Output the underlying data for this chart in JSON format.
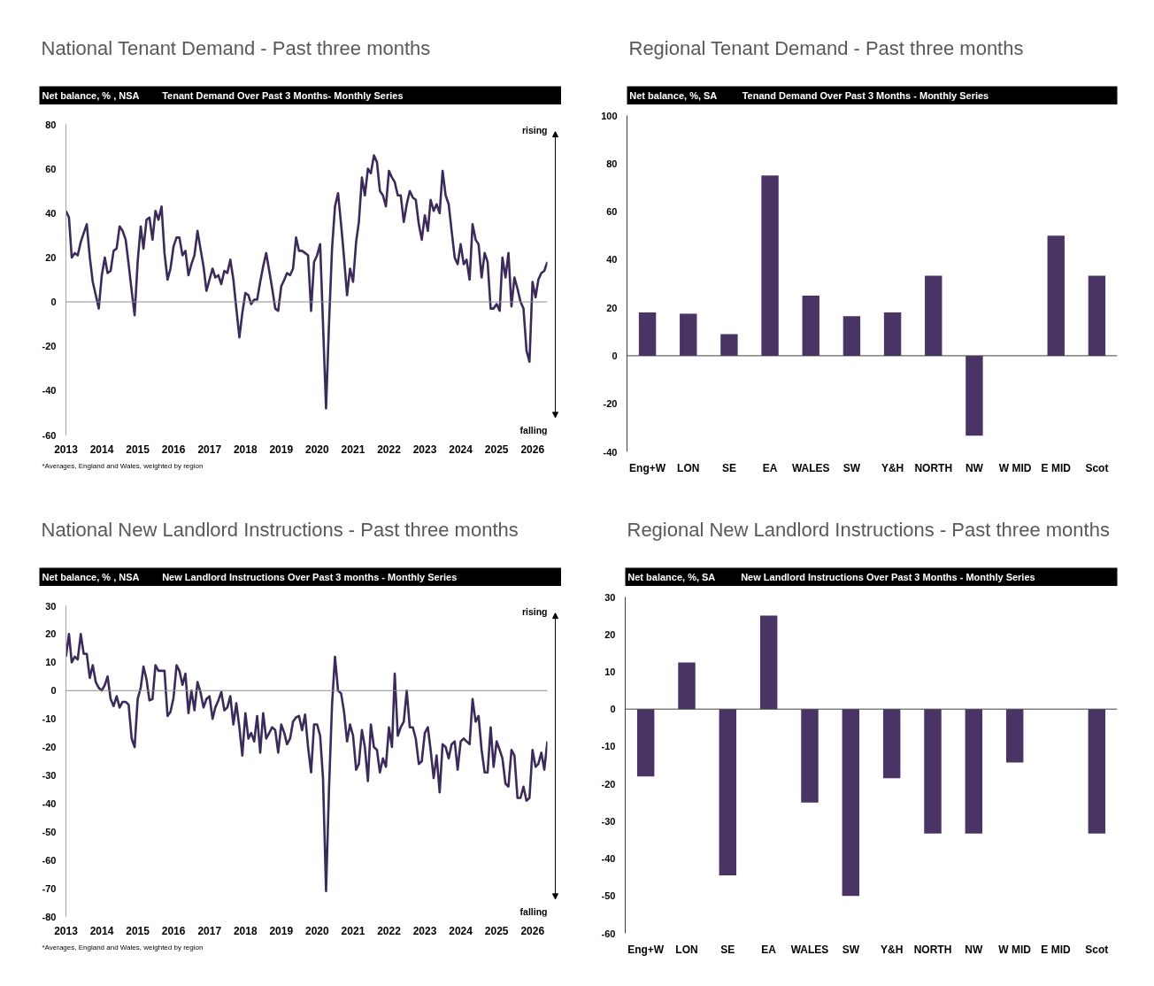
{
  "chart_data": [
    {
      "type": "line",
      "title": "National Tenant Demand - Past three months",
      "subtitle": "Tenant Demand Over Past 3 Months- Monthly Series",
      "ylabel": "Net balance, % , NSA",
      "annotations": [
        "rising",
        "falling",
        "*Averages, England and Wales, weighted by region"
      ],
      "x": [
        "2013-01",
        "2013-02",
        "2013-03",
        "2013-04",
        "2013-05",
        "2013-06",
        "2013-07",
        "2013-08",
        "2013-09",
        "2013-10",
        "2013-11",
        "2013-12",
        "2014-01",
        "2014-02",
        "2014-03",
        "2014-04",
        "2014-05",
        "2014-06",
        "2014-07",
        "2014-08",
        "2014-09",
        "2014-10",
        "2014-11",
        "2014-12",
        "2015-01",
        "2015-02",
        "2015-03",
        "2015-04",
        "2015-05",
        "2015-06",
        "2015-07",
        "2015-08",
        "2015-09",
        "2015-10",
        "2015-11",
        "2015-12",
        "2016-01",
        "2016-02",
        "2016-03",
        "2016-04",
        "2016-05",
        "2016-06",
        "2016-07",
        "2016-08",
        "2016-09",
        "2016-10",
        "2016-11",
        "2016-12",
        "2017-01",
        "2017-02",
        "2017-03",
        "2017-04",
        "2017-05",
        "2017-06",
        "2017-07",
        "2017-08",
        "2017-09",
        "2017-10",
        "2017-11",
        "2017-12",
        "2018-01",
        "2018-02",
        "2018-03",
        "2018-04",
        "2018-05",
        "2018-06",
        "2018-07",
        "2018-08",
        "2018-09",
        "2018-10",
        "2018-11",
        "2018-12",
        "2019-01",
        "2019-02",
        "2019-03",
        "2019-04",
        "2019-05",
        "2019-06",
        "2019-07",
        "2019-08",
        "2019-09",
        "2019-10",
        "2019-11",
        "2019-12",
        "2020-01",
        "2020-02",
        "2020-03",
        "2020-04",
        "2020-05",
        "2020-06",
        "2020-07",
        "2020-08",
        "2020-09",
        "2020-10",
        "2020-11",
        "2020-12",
        "2021-01",
        "2021-02",
        "2021-03",
        "2021-04",
        "2021-05",
        "2021-06",
        "2021-07",
        "2021-08",
        "2021-09",
        "2021-10",
        "2021-11",
        "2021-12",
        "2022-01",
        "2022-02",
        "2022-03",
        "2022-04",
        "2022-05",
        "2022-06",
        "2022-07",
        "2022-08",
        "2022-09",
        "2022-10",
        "2022-11",
        "2022-12",
        "2023-01",
        "2023-02",
        "2023-03",
        "2023-04",
        "2023-05",
        "2023-06",
        "2023-07",
        "2023-08",
        "2023-09",
        "2023-10",
        "2023-11",
        "2023-12",
        "2024-01",
        "2024-02",
        "2024-03",
        "2024-04",
        "2024-05",
        "2024-06",
        "2024-07",
        "2024-08",
        "2024-09",
        "2024-10",
        "2024-11",
        "2024-12",
        "2025-01",
        "2025-02",
        "2025-03",
        "2025-04",
        "2025-05",
        "2025-06",
        "2025-07",
        "2025-08",
        "2025-09",
        "2025-10",
        "2025-11",
        "2025-12",
        "2026-01",
        "2026-02",
        "2026-03",
        "2026-04",
        "2026-05",
        "2026-06"
      ],
      "series": [
        {
          "color": "#3b2a5a",
          "values": [
            41,
            38,
            20,
            22,
            21,
            27,
            31,
            35,
            20,
            9,
            3,
            -3,
            12,
            20,
            13,
            14,
            23,
            24,
            34,
            32,
            28,
            17,
            5,
            -6,
            18,
            34,
            24,
            37,
            38,
            28,
            41,
            37,
            43,
            22,
            10,
            15,
            25,
            29,
            29,
            21,
            23,
            12,
            17,
            21,
            32,
            24,
            16,
            5,
            10,
            15,
            11,
            12,
            8,
            14,
            13,
            19,
            10,
            -3,
            -16,
            -5,
            4,
            3,
            -1,
            1,
            1,
            9,
            16,
            22,
            14,
            6,
            -3,
            -4,
            7,
            10,
            13,
            12,
            15,
            29,
            23,
            23,
            22,
            21,
            -4,
            18,
            21,
            26,
            -10,
            -48,
            -10,
            24,
            43,
            49,
            35,
            20,
            3,
            15,
            9,
            27,
            36,
            56,
            48,
            60,
            58,
            66,
            63,
            50,
            48,
            43,
            59,
            56,
            54,
            48,
            48,
            36,
            44,
            50,
            47,
            46,
            35,
            28,
            39,
            32,
            46,
            41,
            44,
            40,
            59,
            48,
            44,
            32,
            20,
            17,
            26,
            17,
            19,
            10,
            35,
            28,
            26,
            11,
            22,
            18,
            -3,
            -3,
            -1,
            -4,
            20,
            11,
            22,
            -2,
            11,
            6,
            0,
            -3,
            -22,
            -27,
            9,
            2,
            10,
            13,
            14,
            18
          ]
        }
      ],
      "xlim": [
        "2013-01",
        "2026-06"
      ],
      "xticks": [
        "2013",
        "2014",
        "2015",
        "2016",
        "2017",
        "2018",
        "2019",
        "2020",
        "2021",
        "2022",
        "2023",
        "2024",
        "2025",
        "2026"
      ],
      "ylim": [
        -60,
        80
      ],
      "yticks": [
        -60,
        -40,
        -20,
        0,
        20,
        40,
        60,
        80
      ],
      "ref_lines": [
        {
          "axis": "y",
          "value": 0,
          "color": "#8c8c8c"
        }
      ]
    },
    {
      "type": "bar",
      "title": "Regional Tenant Demand - Past three months",
      "subtitle": "Tenand Demand Over Past 3 Months - Monthly Series",
      "ylabel": "Net balance, %, SA",
      "categories": [
        "Eng+W",
        "LON",
        "SE",
        "EA",
        "WALES",
        "SW",
        "Y&H",
        "NORTH",
        "NW",
        "W MID",
        "E MID",
        "Scot"
      ],
      "series": [
        {
          "color": "#4a3466",
          "values": [
            18,
            17.5,
            9,
            75,
            25,
            16.5,
            18,
            33.3,
            -33.3,
            null,
            50,
            33.3
          ]
        }
      ],
      "ylim": [
        -40,
        100
      ],
      "yticks": [
        -40,
        -20,
        0,
        20,
        40,
        60,
        80,
        100
      ],
      "ref_lines": [
        {
          "axis": "y",
          "value": 0,
          "color": "#404040"
        }
      ]
    },
    {
      "type": "line",
      "title": "National New Landlord Instructions - Past three months",
      "subtitle": "New Landlord Instructions Over Past 3 months - Monthly Series",
      "ylabel": "Net balance, % , NSA",
      "annotations": [
        "rising",
        "falling",
        "*Averages, England and Wales, weighted by region"
      ],
      "x": [
        "2013-01",
        "2013-02",
        "2013-03",
        "2013-04",
        "2013-05",
        "2013-06",
        "2013-07",
        "2013-08",
        "2013-09",
        "2013-10",
        "2013-11",
        "2013-12",
        "2014-01",
        "2014-02",
        "2014-03",
        "2014-04",
        "2014-05",
        "2014-06",
        "2014-07",
        "2014-08",
        "2014-09",
        "2014-10",
        "2014-11",
        "2014-12",
        "2015-01",
        "2015-02",
        "2015-03",
        "2015-04",
        "2015-05",
        "2015-06",
        "2015-07",
        "2015-08",
        "2015-09",
        "2015-10",
        "2015-11",
        "2015-12",
        "2016-01",
        "2016-02",
        "2016-03",
        "2016-04",
        "2016-05",
        "2016-06",
        "2016-07",
        "2016-08",
        "2016-09",
        "2016-10",
        "2016-11",
        "2016-12",
        "2017-01",
        "2017-02",
        "2017-03",
        "2017-04",
        "2017-05",
        "2017-06",
        "2017-07",
        "2017-08",
        "2017-09",
        "2017-10",
        "2017-11",
        "2017-12",
        "2018-01",
        "2018-02",
        "2018-03",
        "2018-04",
        "2018-05",
        "2018-06",
        "2018-07",
        "2018-08",
        "2018-09",
        "2018-10",
        "2018-11",
        "2018-12",
        "2019-01",
        "2019-02",
        "2019-03",
        "2019-04",
        "2019-05",
        "2019-06",
        "2019-07",
        "2019-08",
        "2019-09",
        "2019-10",
        "2019-11",
        "2019-12",
        "2020-01",
        "2020-02",
        "2020-03",
        "2020-04",
        "2020-05",
        "2020-06",
        "2020-07",
        "2020-08",
        "2020-09",
        "2020-10",
        "2020-11",
        "2020-12",
        "2021-01",
        "2021-02",
        "2021-03",
        "2021-04",
        "2021-05",
        "2021-06",
        "2021-07",
        "2021-08",
        "2021-09",
        "2021-10",
        "2021-11",
        "2021-12",
        "2022-01",
        "2022-02",
        "2022-03",
        "2022-04",
        "2022-05",
        "2022-06",
        "2022-07",
        "2022-08",
        "2022-09",
        "2022-10",
        "2022-11",
        "2022-12",
        "2023-01",
        "2023-02",
        "2023-03",
        "2023-04",
        "2023-05",
        "2023-06",
        "2023-07",
        "2023-08",
        "2023-09",
        "2023-10",
        "2023-11",
        "2023-12",
        "2024-01",
        "2024-02",
        "2024-03",
        "2024-04",
        "2024-05",
        "2024-06",
        "2024-07",
        "2024-08",
        "2024-09",
        "2024-10",
        "2024-11",
        "2024-12",
        "2025-01",
        "2025-02",
        "2025-03",
        "2025-04",
        "2025-05",
        "2025-06",
        "2025-07",
        "2025-08",
        "2025-09",
        "2025-10",
        "2025-11",
        "2025-12",
        "2026-01",
        "2026-02",
        "2026-03",
        "2026-04",
        "2026-05",
        "2026-06"
      ],
      "series": [
        {
          "color": "#3b2a5a",
          "values": [
            12,
            20,
            10,
            12,
            11,
            20,
            13,
            13,
            4.5,
            9,
            3,
            1,
            0,
            2,
            5,
            -3,
            -5.5,
            -2,
            -6,
            -4,
            -4,
            -5,
            -17,
            -20,
            -3,
            1,
            8.5,
            4,
            -3.5,
            -3,
            9,
            7,
            7,
            7,
            -9,
            -7.5,
            -2.5,
            9,
            7,
            2,
            6,
            -8,
            0,
            -7,
            3,
            -0.5,
            -6,
            -3,
            -2,
            -10,
            -6,
            -3.5,
            -0.5,
            -7,
            -6,
            -2,
            -12,
            -4.5,
            -13,
            -23,
            -8,
            -17,
            -15,
            -18,
            -9,
            -22,
            -8,
            -17,
            -15,
            -13,
            -14,
            -22,
            -12,
            -15,
            -19,
            -17,
            -11,
            -9.5,
            -9,
            -14,
            -8.5,
            -20,
            -29,
            -12,
            -12,
            -16,
            -31,
            -71,
            -35,
            -5,
            12,
            0,
            -1,
            -7.5,
            -18,
            -12,
            -16,
            -28,
            -26,
            -14,
            -20,
            -32,
            -12,
            -20,
            -21,
            -29,
            -24,
            -27,
            -13,
            -20,
            6,
            -16,
            -13,
            -11,
            0,
            -13,
            -13,
            -17,
            -26,
            -25,
            -15,
            -13,
            -21,
            -31,
            -23,
            -36,
            -19,
            -20,
            -24,
            -19,
            -18,
            -28,
            -18,
            -17,
            -18,
            -19,
            -3,
            -11,
            -9,
            -21,
            -29,
            -29,
            -13,
            -27,
            -18,
            -21,
            -24,
            -33,
            -34,
            -21,
            -23,
            -38,
            -38,
            -34,
            -39,
            -38,
            -21,
            -27,
            -26,
            -22,
            -28,
            -18
          ]
        }
      ],
      "xlim": [
        "2013-01",
        "2026-06"
      ],
      "xticks": [
        "2013",
        "2014",
        "2015",
        "2016",
        "2017",
        "2018",
        "2019",
        "2020",
        "2021",
        "2022",
        "2023",
        "2024",
        "2025",
        "2026"
      ],
      "ylim": [
        -80,
        30
      ],
      "yticks": [
        -80,
        -70,
        -60,
        -50,
        -40,
        -30,
        -20,
        -10,
        0,
        10,
        20,
        30
      ],
      "ref_lines": [
        {
          "axis": "y",
          "value": 0,
          "color": "#8c8c8c"
        }
      ]
    },
    {
      "type": "bar",
      "title": "Regional New Landlord Instructions - Past three months",
      "subtitle": "New Landlord Instructions Over Past 3 Months - Monthly Series",
      "ylabel": "Net balance, %, SA",
      "categories": [
        "Eng+W",
        "LON",
        "SE",
        "EA",
        "WALES",
        "SW",
        "Y&H",
        "NORTH",
        "NW",
        "W MID",
        "E MID",
        "Scot"
      ],
      "series": [
        {
          "color": "#4a3466",
          "values": [
            -18,
            12.5,
            -44.5,
            25,
            -25,
            -50,
            -18.5,
            -33.3,
            -33.3,
            -14.3,
            null,
            -33.3
          ]
        }
      ],
      "ylim": [
        -60,
        30
      ],
      "yticks": [
        -60,
        -50,
        -40,
        -30,
        -20,
        -10,
        0,
        10,
        20,
        30
      ],
      "ref_lines": [
        {
          "axis": "y",
          "value": 0,
          "color": "#404040"
        }
      ]
    }
  ]
}
